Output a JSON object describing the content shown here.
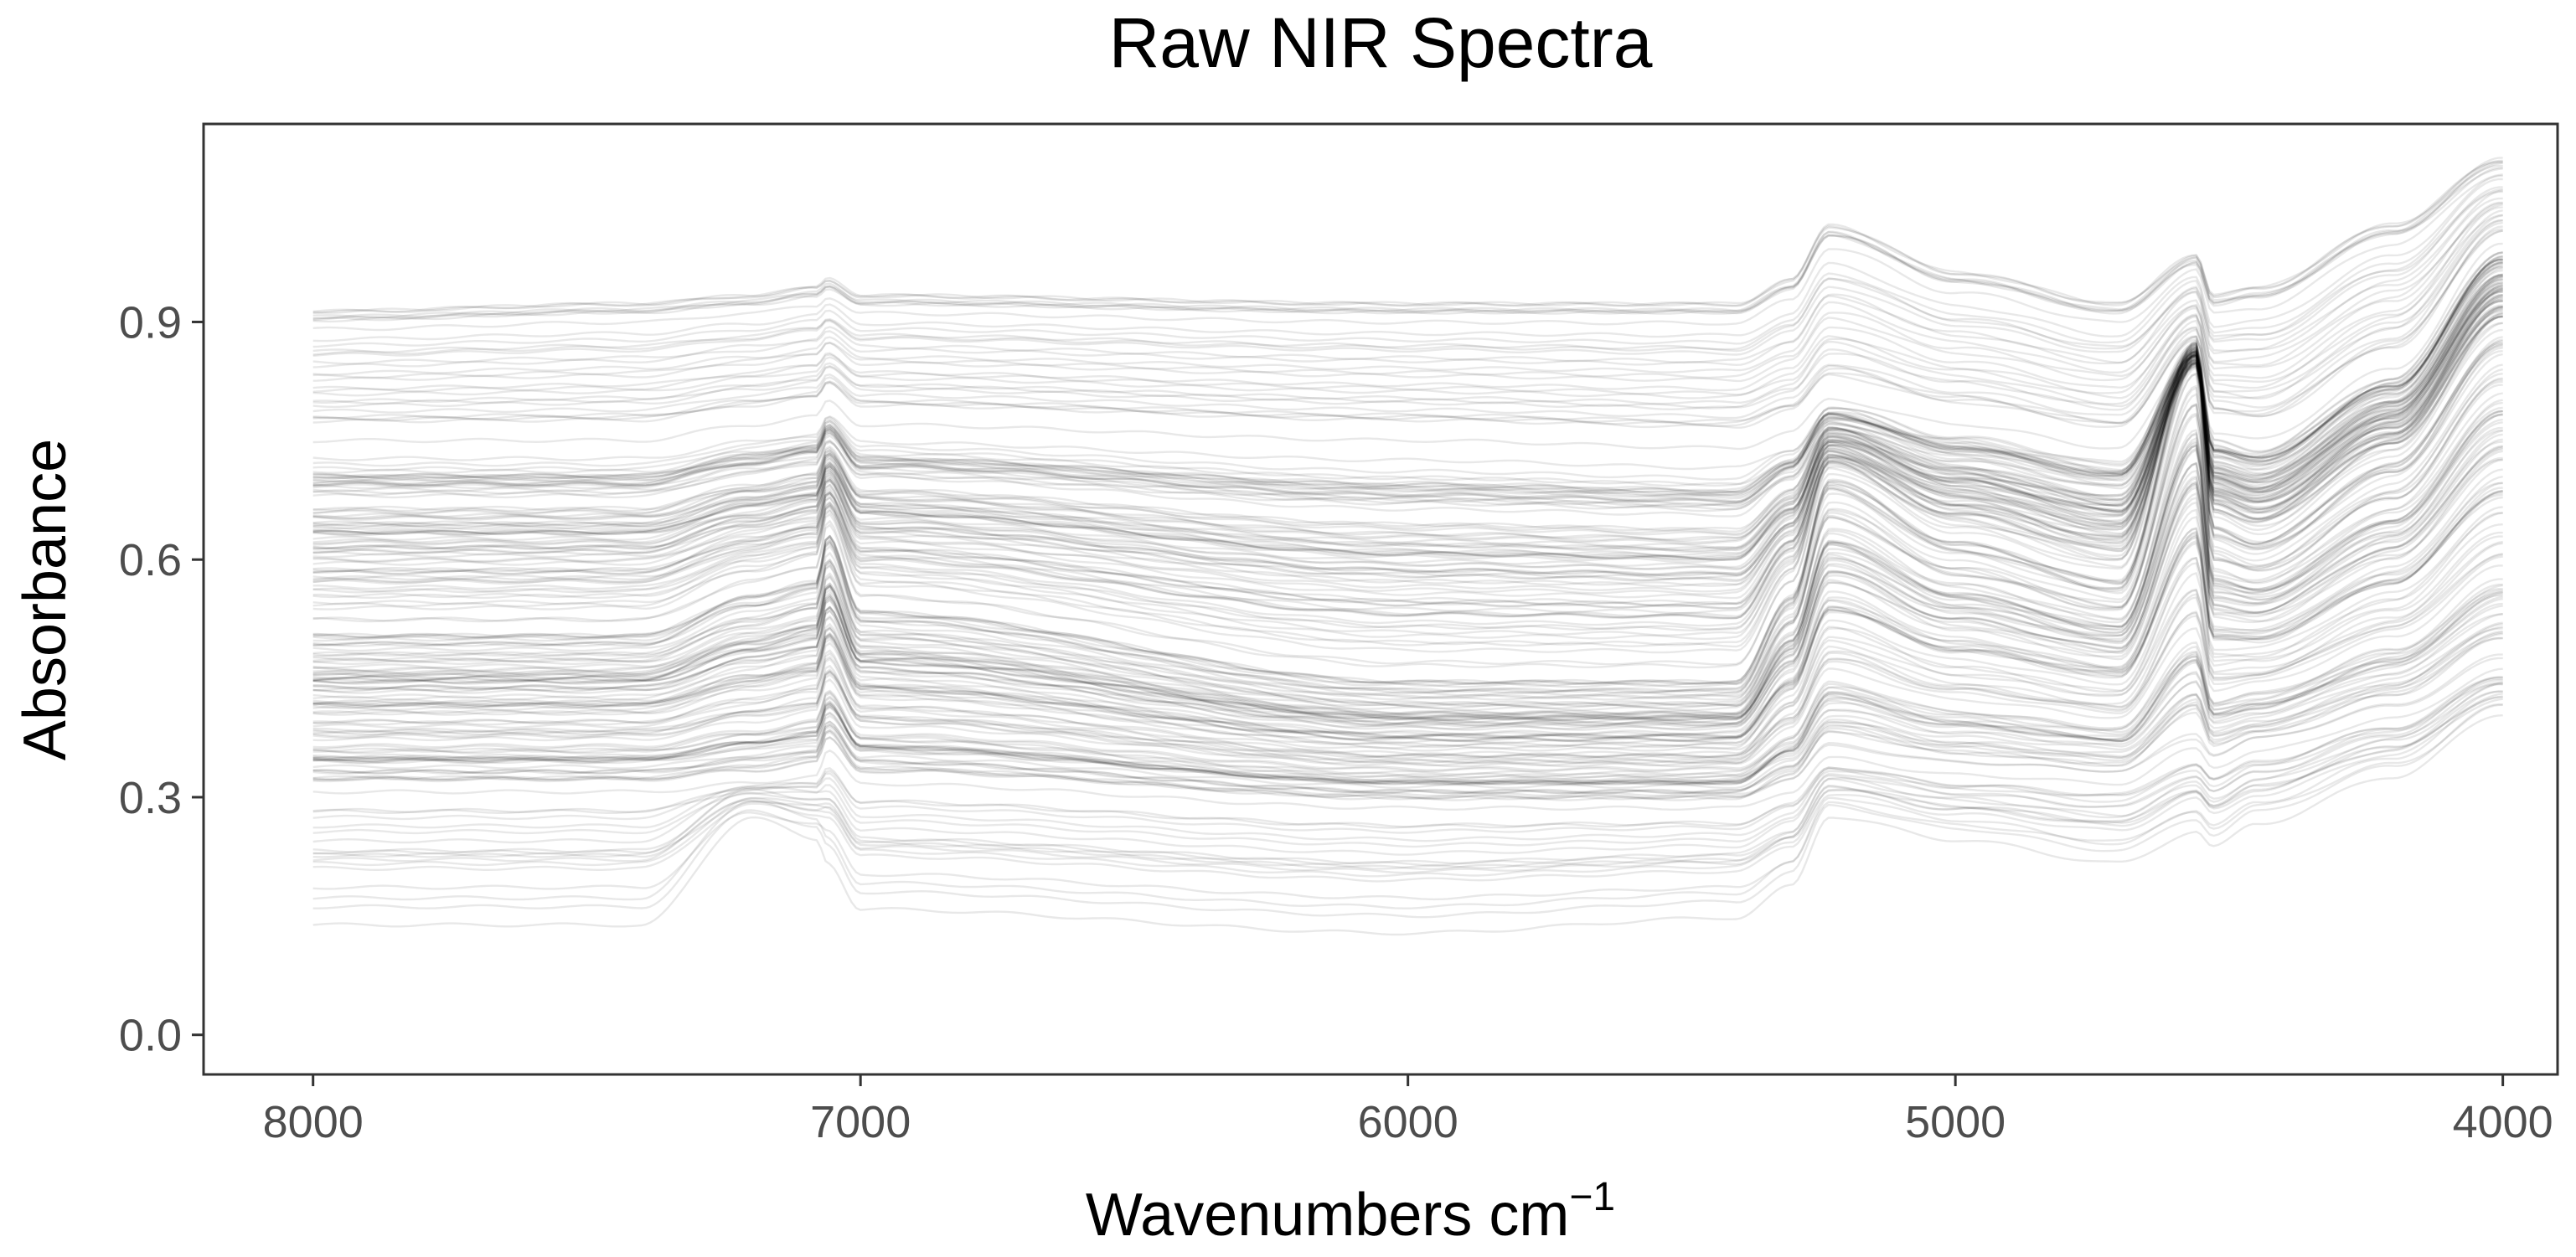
{
  "chart_data": {
    "type": "line",
    "title": "Raw NIR Spectra",
    "xlabel": "Wavenumbers cm",
    "xlabel_superscript": "−1",
    "ylabel": "Absorbance",
    "x_reversed": true,
    "xlim": [
      8200,
      3900
    ],
    "ylim": [
      -0.05,
      1.15
    ],
    "x_ticks": [
      8000,
      7000,
      6000,
      5000,
      4000
    ],
    "x_tick_labels": [
      "8000",
      "7000",
      "6000",
      "5000",
      "4000"
    ],
    "y_ticks": [
      0.0,
      0.3,
      0.6,
      0.9
    ],
    "y_tick_labels": [
      "0.0",
      "0.3",
      "0.6",
      "0.9"
    ],
    "grid": false,
    "legend": "none",
    "line_color": "#000000",
    "line_opacity": 0.09,
    "n_spectra": 220,
    "x_range": [
      8000,
      4000
    ],
    "representative_spectra": [
      {
        "x": [
          8000,
          7400,
          7200,
          7080,
          7060,
          7000,
          6000,
          5400,
          5300,
          5230,
          5000,
          4700,
          4560,
          4530,
          4450,
          4200,
          4000
        ],
        "y": [
          0.14,
          0.14,
          0.28,
          0.25,
          0.22,
          0.16,
          0.13,
          0.15,
          0.19,
          0.28,
          0.25,
          0.22,
          0.26,
          0.24,
          0.27,
          0.33,
          0.41
        ]
      },
      {
        "x": [
          8000,
          7400,
          7200,
          7080,
          7060,
          7000,
          6000,
          5400,
          5300,
          5230,
          5000,
          4700,
          4560,
          4530,
          4450,
          4200,
          4000
        ],
        "y": [
          0.31,
          0.31,
          0.32,
          0.33,
          0.36,
          0.32,
          0.29,
          0.29,
          0.31,
          0.35,
          0.33,
          0.32,
          0.36,
          0.34,
          0.36,
          0.4,
          0.46
        ]
      },
      {
        "x": [
          8000,
          7400,
          7200,
          7080,
          7060,
          7000,
          6000,
          5400,
          5300,
          5230,
          5000,
          4700,
          4560,
          4530,
          4450,
          4200,
          4000
        ],
        "y": [
          0.5,
          0.5,
          0.55,
          0.57,
          0.63,
          0.53,
          0.44,
          0.44,
          0.55,
          0.7,
          0.62,
          0.57,
          0.86,
          0.64,
          0.62,
          0.72,
          0.88
        ]
      },
      {
        "x": [
          8000,
          7400,
          7200,
          7080,
          7060,
          7000,
          6000,
          5400,
          5300,
          5230,
          5000,
          4700,
          4560,
          4530,
          4450,
          4200,
          4000
        ],
        "y": [
          0.75,
          0.75,
          0.77,
          0.78,
          0.8,
          0.77,
          0.75,
          0.74,
          0.76,
          0.8,
          0.77,
          0.74,
          0.86,
          0.76,
          0.75,
          0.84,
          1.0
        ]
      },
      {
        "x": [
          8000,
          7400,
          7200,
          7080,
          7060,
          7000,
          6000,
          5400,
          5300,
          5230,
          5000,
          4700,
          4560,
          4530,
          4450,
          4200,
          4000
        ],
        "y": [
          0.91,
          0.92,
          0.93,
          0.94,
          0.95,
          0.93,
          0.92,
          0.92,
          0.95,
          1.02,
          0.96,
          0.92,
          0.98,
          0.93,
          0.94,
          1.02,
          1.1
        ]
      }
    ]
  }
}
